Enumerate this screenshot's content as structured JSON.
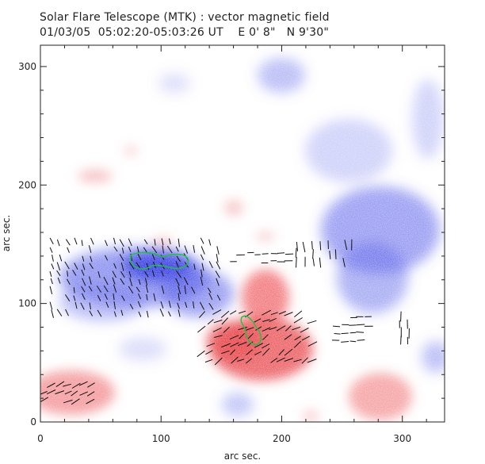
{
  "header": {
    "title": "Solar Flare Telescope (MTK) : vector magnetic field",
    "subtitle": "01/03/05  05:02:20-05:03:26 UT    E 0' 8\"   N 9'30\""
  },
  "chart_data": {
    "type": "heatmap",
    "xlabel": "arc sec.",
    "ylabel": "arc sec.",
    "xlim": [
      0,
      335
    ],
    "ylim": [
      0,
      318
    ],
    "xticks": [
      "0",
      "100",
      "200",
      "300"
    ],
    "yticks": [
      "0",
      "100",
      "200",
      "300"
    ],
    "colors": {
      "positive": "#e8444a",
      "negative": "#3c46e6",
      "vectors": "#111111",
      "contour": "#22c040"
    }
  }
}
